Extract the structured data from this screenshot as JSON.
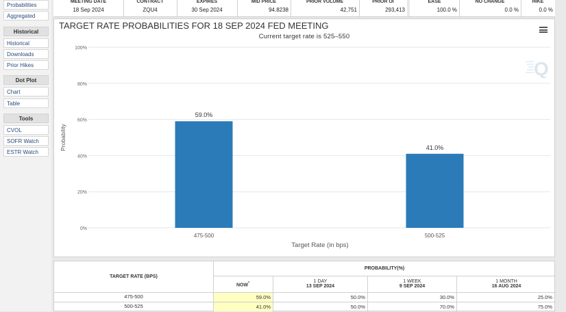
{
  "sidebar": {
    "items_top": [
      "Probabilities",
      "Aggregated"
    ],
    "sections": [
      {
        "title": "Historical",
        "items": [
          "Historical",
          "Downloads",
          "Prior Hikes"
        ]
      },
      {
        "title": "Dot Plot",
        "items": [
          "Chart",
          "Table"
        ]
      },
      {
        "title": "Tools",
        "items": [
          "CVOL",
          "SOFR Watch",
          "ESTR Watch"
        ]
      }
    ]
  },
  "top_table": {
    "headers": [
      "MEETING DATE",
      "CONTRACT",
      "EXPIRES",
      "MID PRICE",
      "PRIOR VOLUME",
      "PRIOR OI",
      "EASE",
      "NO CHANGE",
      "HIKE"
    ],
    "values": [
      "18 Sep 2024",
      "ZQU4",
      "30 Sep 2024",
      "94.8238",
      "42,751",
      "293,413",
      "100.0 %",
      "0.0 %",
      "0.0 %"
    ]
  },
  "chart": {
    "title": "TARGET RATE PROBABILITIES FOR 18 SEP 2024 FED MEETING",
    "subtitle": "Current target rate is 525–550",
    "watermark": "Q",
    "menu_icon": "hamburger-menu-icon"
  },
  "chart_data": {
    "type": "bar",
    "title": "TARGET RATE PROBABILITIES FOR 18 SEP 2024 FED MEETING",
    "subtitle": "Current target rate is 525–550",
    "categories": [
      "475-500",
      "500-525"
    ],
    "values": [
      59.0,
      41.0
    ],
    "data_labels": [
      "59.0%",
      "41.0%"
    ],
    "xlabel": "Target Rate (in bps)",
    "ylabel": "Probability",
    "ylim": [
      0,
      100
    ],
    "yticks": [
      "0%",
      "20%",
      "40%",
      "60%",
      "80%",
      "100%"
    ],
    "grid": true,
    "color": "#2b7bb9"
  },
  "bottom_table": {
    "col_target": "TARGET RATE (BPS)",
    "col_prob": "PROBABILITY(%)",
    "subcols": [
      {
        "line1": "NOW",
        "marker": "*",
        "line2": ""
      },
      {
        "line1": "1 DAY",
        "line2": "13 SEP 2024"
      },
      {
        "line1": "1 WEEK",
        "line2": "9 SEP 2024"
      },
      {
        "line1": "1 MONTH",
        "line2": "16 AUG 2024"
      }
    ],
    "rows": [
      {
        "rate": "475-500",
        "values": [
          "59.0%",
          "50.0%",
          "30.0%",
          "25.0%"
        ]
      },
      {
        "rate": "500-525",
        "values": [
          "41.0%",
          "50.0%",
          "70.0%",
          "75.0%"
        ]
      }
    ]
  }
}
